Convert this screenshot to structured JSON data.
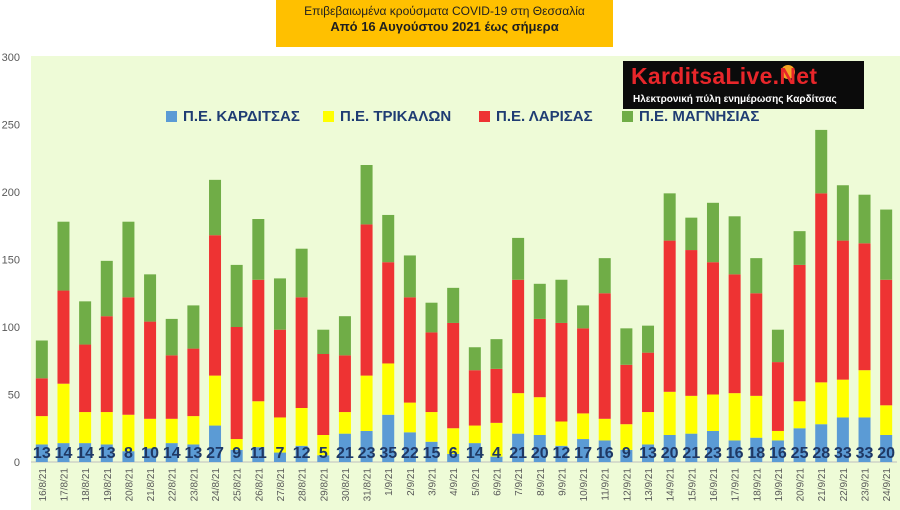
{
  "title": {
    "line1": "Επιβεβαιωμένα κρούσματα COVID-19 στη Θεσσαλία",
    "line2": "Από 16 Αυγούστου 2021 έως σήμερα"
  },
  "logo": {
    "name": "KarditsaLive.Net",
    "tagline": "Ηλεκτρονική πύλη ενημέρωσης Καρδίτσας"
  },
  "colors": {
    "karditsa": "#5b9bd5",
    "trikala": "#ffff00",
    "larisa": "#ee3333",
    "magnisia": "#70ad47",
    "plot_background": "#eefbd7",
    "title_background": "#ffc000"
  },
  "chart_data": {
    "type": "bar",
    "stacked": true,
    "categories": [
      "16/8/21",
      "17/8/21",
      "18/8/21",
      "19/8/21",
      "20/8/21",
      "21/8/21",
      "22/8/21",
      "23/8/21",
      "24/8/21",
      "25/8/21",
      "26/8/21",
      "27/8/21",
      "28/8/21",
      "29/8/21",
      "30/8/21",
      "31/8/21",
      "1/9/21",
      "2/9/21",
      "3/9/21",
      "4/9/21",
      "5/9/21",
      "6/9/21",
      "7/9/21",
      "8/9/21",
      "9/9/21",
      "10/9/21",
      "11/9/21",
      "12/9/21",
      "13/9/21",
      "14/9/21",
      "15/9/21",
      "16/9/21",
      "17/9/21",
      "18/9/21",
      "19/9/21",
      "20/9/21",
      "21/9/21",
      "22/9/21",
      "23/9/21",
      "24/9/21"
    ],
    "series": [
      {
        "name": "Π.Ε. ΚΑΡΔΙΤΣΑΣ",
        "values": [
          13,
          14,
          14,
          13,
          8,
          10,
          14,
          13,
          27,
          9,
          11,
          7,
          12,
          5,
          21,
          23,
          35,
          22,
          15,
          6,
          14,
          4,
          21,
          20,
          12,
          17,
          16,
          9,
          13,
          20,
          21,
          23,
          16,
          18,
          16,
          25,
          28,
          33,
          33,
          20
        ]
      },
      {
        "name": "Π.Ε. ΤΡΙΚΑΛΩΝ",
        "values": [
          21,
          44,
          23,
          24,
          27,
          22,
          18,
          21,
          37,
          8,
          34,
          26,
          28,
          15,
          16,
          41,
          38,
          22,
          22,
          19,
          13,
          25,
          30,
          28,
          18,
          19,
          16,
          19,
          24,
          32,
          28,
          27,
          35,
          31,
          7,
          20,
          31,
          28,
          35,
          22
        ]
      },
      {
        "name": "Π.Ε. ΛΑΡΙΣΑΣ",
        "values": [
          28,
          69,
          50,
          71,
          87,
          72,
          47,
          50,
          104,
          83,
          90,
          65,
          82,
          60,
          42,
          112,
          75,
          78,
          59,
          78,
          41,
          40,
          84,
          58,
          73,
          63,
          93,
          44,
          44,
          112,
          108,
          98,
          88,
          76,
          51,
          101,
          140,
          103,
          94,
          93
        ]
      },
      {
        "name": "Π.Ε. ΜΑΓΝΗΣΙΑΣ",
        "values": [
          28,
          51,
          32,
          41,
          56,
          35,
          27,
          32,
          41,
          46,
          45,
          38,
          36,
          18,
          29,
          44,
          35,
          31,
          22,
          26,
          17,
          22,
          31,
          26,
          32,
          17,
          26,
          27,
          20,
          35,
          24,
          44,
          43,
          26,
          24,
          25,
          47,
          41,
          36,
          52
        ]
      }
    ],
    "data_labels": "Π.Ε. ΚΑΡΔΙΤΣΑΣ",
    "ylim": [
      0,
      300
    ],
    "yticks": [
      0,
      50,
      100,
      150,
      200,
      250,
      300
    ],
    "grid": false,
    "legend_position": "top"
  }
}
